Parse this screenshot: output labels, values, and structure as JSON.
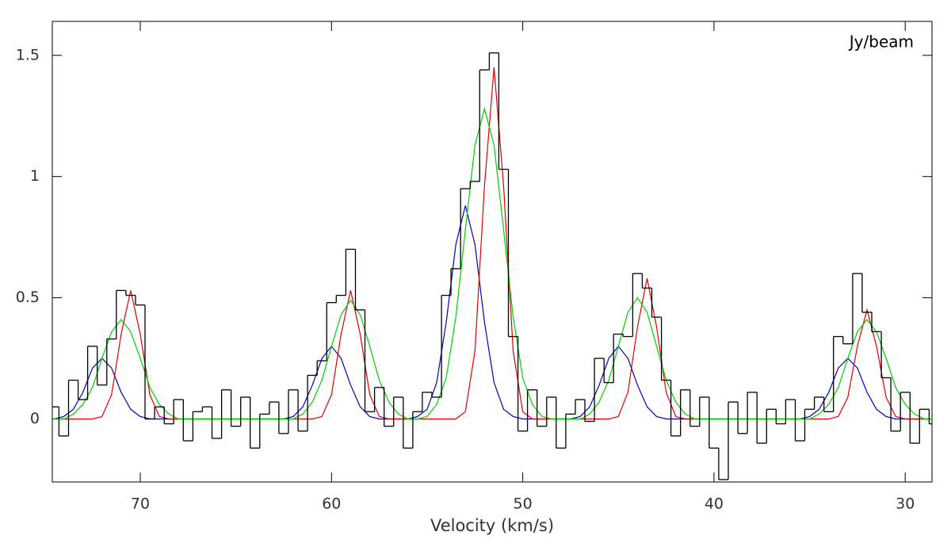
{
  "chart_data": {
    "type": "line",
    "unit_label": "Jy/beam",
    "x_label": "Velocity (km/s)",
    "xlim": [
      74.6,
      28.6
    ],
    "ylim": [
      -0.26,
      1.64
    ],
    "xticks": [
      70,
      60,
      50,
      40,
      30
    ],
    "yticks": [
      0,
      0.5,
      1,
      1.5
    ],
    "x": [
      74.5,
      74,
      73.5,
      73,
      72.5,
      72,
      71.5,
      71,
      70.5,
      70,
      69.5,
      69,
      68.5,
      68,
      67.5,
      67,
      66.5,
      66,
      65.5,
      65,
      64.5,
      64,
      63.5,
      63,
      62.5,
      62,
      61.5,
      61,
      60.5,
      60,
      59.5,
      59,
      58.5,
      58,
      57.5,
      57,
      56.5,
      56,
      55.5,
      55,
      54.5,
      54,
      53.5,
      53,
      52.5,
      52,
      51.5,
      51,
      50.5,
      50,
      49.5,
      49,
      48.5,
      48,
      47.5,
      47,
      46.5,
      46,
      45.5,
      45,
      44.5,
      44,
      43.5,
      43,
      42.5,
      42,
      41.5,
      41,
      40.5,
      40,
      39.5,
      39,
      38.5,
      38,
      37.5,
      37,
      36.5,
      36,
      35.5,
      35,
      34.5,
      34,
      33.5,
      33,
      32.5,
      32,
      31.5,
      31,
      30.5,
      30,
      29.5,
      29,
      28.5
    ],
    "series": [
      {
        "style": "step",
        "color": "#000000",
        "values": [
          0.05,
          -0.07,
          0.16,
          0.08,
          0.3,
          0.14,
          0.33,
          0.53,
          0.51,
          0.47,
          0,
          0.05,
          -0.02,
          0.08,
          -0.09,
          0.03,
          0.05,
          -0.08,
          0.12,
          -0.03,
          0.09,
          -0.12,
          0.02,
          0.07,
          -0.06,
          0.12,
          -0.05,
          0.18,
          0.24,
          0.48,
          0.51,
          0.7,
          0.45,
          0.03,
          0.13,
          -0.03,
          0.09,
          -0.12,
          0.03,
          0.11,
          0.09,
          0.51,
          0.62,
          0.95,
          0.98,
          1.44,
          1.51,
          1.03,
          0.34,
          -0.05,
          0.12,
          -0.03,
          0.09,
          -0.12,
          0.02,
          0.08,
          -0.01,
          0.25,
          0.15,
          0.35,
          0.34,
          0.6,
          0.54,
          0.42,
          0.16,
          -0.07,
          0.12,
          -0.03,
          0.09,
          -0.12,
          -0.25,
          0.07,
          -0.06,
          0.11,
          -0.1,
          0.04,
          -0.02,
          0.08,
          -0.09,
          0.04,
          0.09,
          0.03,
          0.34,
          0.31,
          0.6,
          0.44,
          0.36,
          0.17,
          -0.05,
          0.11,
          -0.1,
          0.04,
          -0.02
        ]
      },
      {
        "style": "smooth",
        "color": "#0000c0",
        "values": [
          0,
          0.01,
          0.04,
          0.11,
          0.21,
          0.25,
          0.21,
          0.11,
          0.04,
          0.01,
          0,
          0,
          0,
          0,
          0,
          0,
          0,
          0,
          0,
          0,
          0,
          0,
          0,
          0,
          0,
          0.01,
          0.05,
          0.14,
          0.25,
          0.3,
          0.25,
          0.14,
          0.05,
          0.01,
          0,
          0,
          0,
          0,
          0.01,
          0.04,
          0.15,
          0.4,
          0.72,
          0.88,
          0.72,
          0.4,
          0.15,
          0.04,
          0.01,
          0,
          0,
          0,
          0,
          0,
          0,
          0.01,
          0.05,
          0.14,
          0.25,
          0.3,
          0.25,
          0.14,
          0.05,
          0.01,
          0,
          0,
          0,
          0,
          0,
          0,
          0,
          0,
          0,
          0,
          0,
          0,
          0,
          0,
          0,
          0.01,
          0.04,
          0.11,
          0.21,
          0.25,
          0.21,
          0.11,
          0.04,
          0.01,
          0,
          0,
          0,
          0,
          0
        ]
      },
      {
        "style": "smooth",
        "color": "#e00000",
        "values": [
          0,
          0,
          0,
          0,
          0,
          0.01,
          0.1,
          0.35,
          0.53,
          0.35,
          0.1,
          0.01,
          0,
          0,
          0,
          0,
          0,
          0,
          0,
          0,
          0,
          0,
          0,
          0,
          0,
          0,
          0,
          0,
          0.01,
          0.1,
          0.35,
          0.53,
          0.35,
          0.1,
          0.01,
          0,
          0,
          0,
          0,
          0,
          0,
          0,
          0,
          0.03,
          0.28,
          0.96,
          1.45,
          0.96,
          0.28,
          0.03,
          0,
          0,
          0,
          0,
          0,
          0,
          0,
          0,
          0,
          0.01,
          0.11,
          0.38,
          0.58,
          0.38,
          0.11,
          0.01,
          0,
          0,
          0,
          0,
          0,
          0,
          0,
          0,
          0,
          0,
          0,
          0,
          0,
          0,
          0,
          0,
          0.01,
          0.09,
          0.3,
          0.45,
          0.3,
          0.09,
          0.01,
          0,
          0,
          0,
          0
        ]
      },
      {
        "style": "smooth",
        "color": "#00d000",
        "values": [
          0,
          0,
          0.02,
          0.06,
          0.13,
          0.25,
          0.36,
          0.41,
          0.36,
          0.25,
          0.13,
          0.06,
          0.02,
          0,
          0,
          0,
          0,
          0,
          0,
          0,
          0,
          0,
          0,
          0,
          0,
          0,
          0.02,
          0.07,
          0.16,
          0.3,
          0.43,
          0.49,
          0.43,
          0.3,
          0.16,
          0.07,
          0.02,
          0,
          0,
          0.01,
          0.06,
          0.17,
          0.42,
          0.78,
          1.13,
          1.28,
          1.13,
          0.78,
          0.42,
          0.17,
          0.06,
          0.01,
          0,
          0,
          0,
          0,
          0.02,
          0.07,
          0.16,
          0.3,
          0.44,
          0.5,
          0.44,
          0.3,
          0.16,
          0.07,
          0.02,
          0,
          0,
          0,
          0,
          0,
          0,
          0,
          0,
          0,
          0,
          0,
          0,
          0,
          0.02,
          0.06,
          0.13,
          0.25,
          0.36,
          0.41,
          0.36,
          0.25,
          0.13,
          0.06,
          0.02,
          0,
          0
        ]
      }
    ]
  }
}
